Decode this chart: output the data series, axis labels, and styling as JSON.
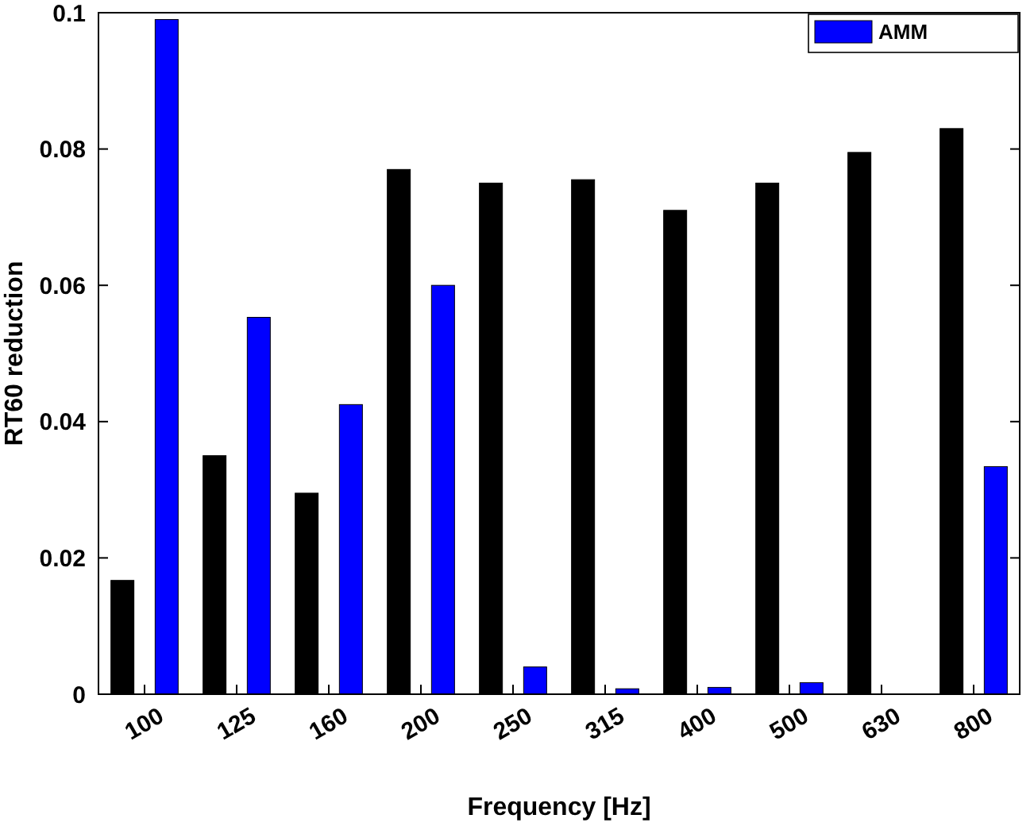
{
  "chart_data": {
    "type": "bar",
    "xlabel": "Frequency [Hz]",
    "ylabel": "RT60 reduction",
    "categories": [
      "100",
      "125",
      "160",
      "200",
      "250",
      "315",
      "400",
      "500",
      "630",
      "800"
    ],
    "series": [
      {
        "color": "#000000",
        "values": [
          0.0167,
          0.035,
          0.0295,
          0.077,
          0.075,
          0.0755,
          0.071,
          0.075,
          0.0795,
          0.083
        ]
      },
      {
        "name": "AMM",
        "color": "#0000ff",
        "values": [
          0.099,
          0.0553,
          0.0425,
          0.06,
          0.004,
          0.0008,
          0.001,
          0.0017,
          null,
          0.0334
        ]
      }
    ],
    "ylim": [
      0,
      0.1
    ],
    "yticks": [
      0,
      0.02,
      0.04,
      0.06,
      0.08,
      0.1
    ],
    "grid": false,
    "legend": "top right"
  }
}
